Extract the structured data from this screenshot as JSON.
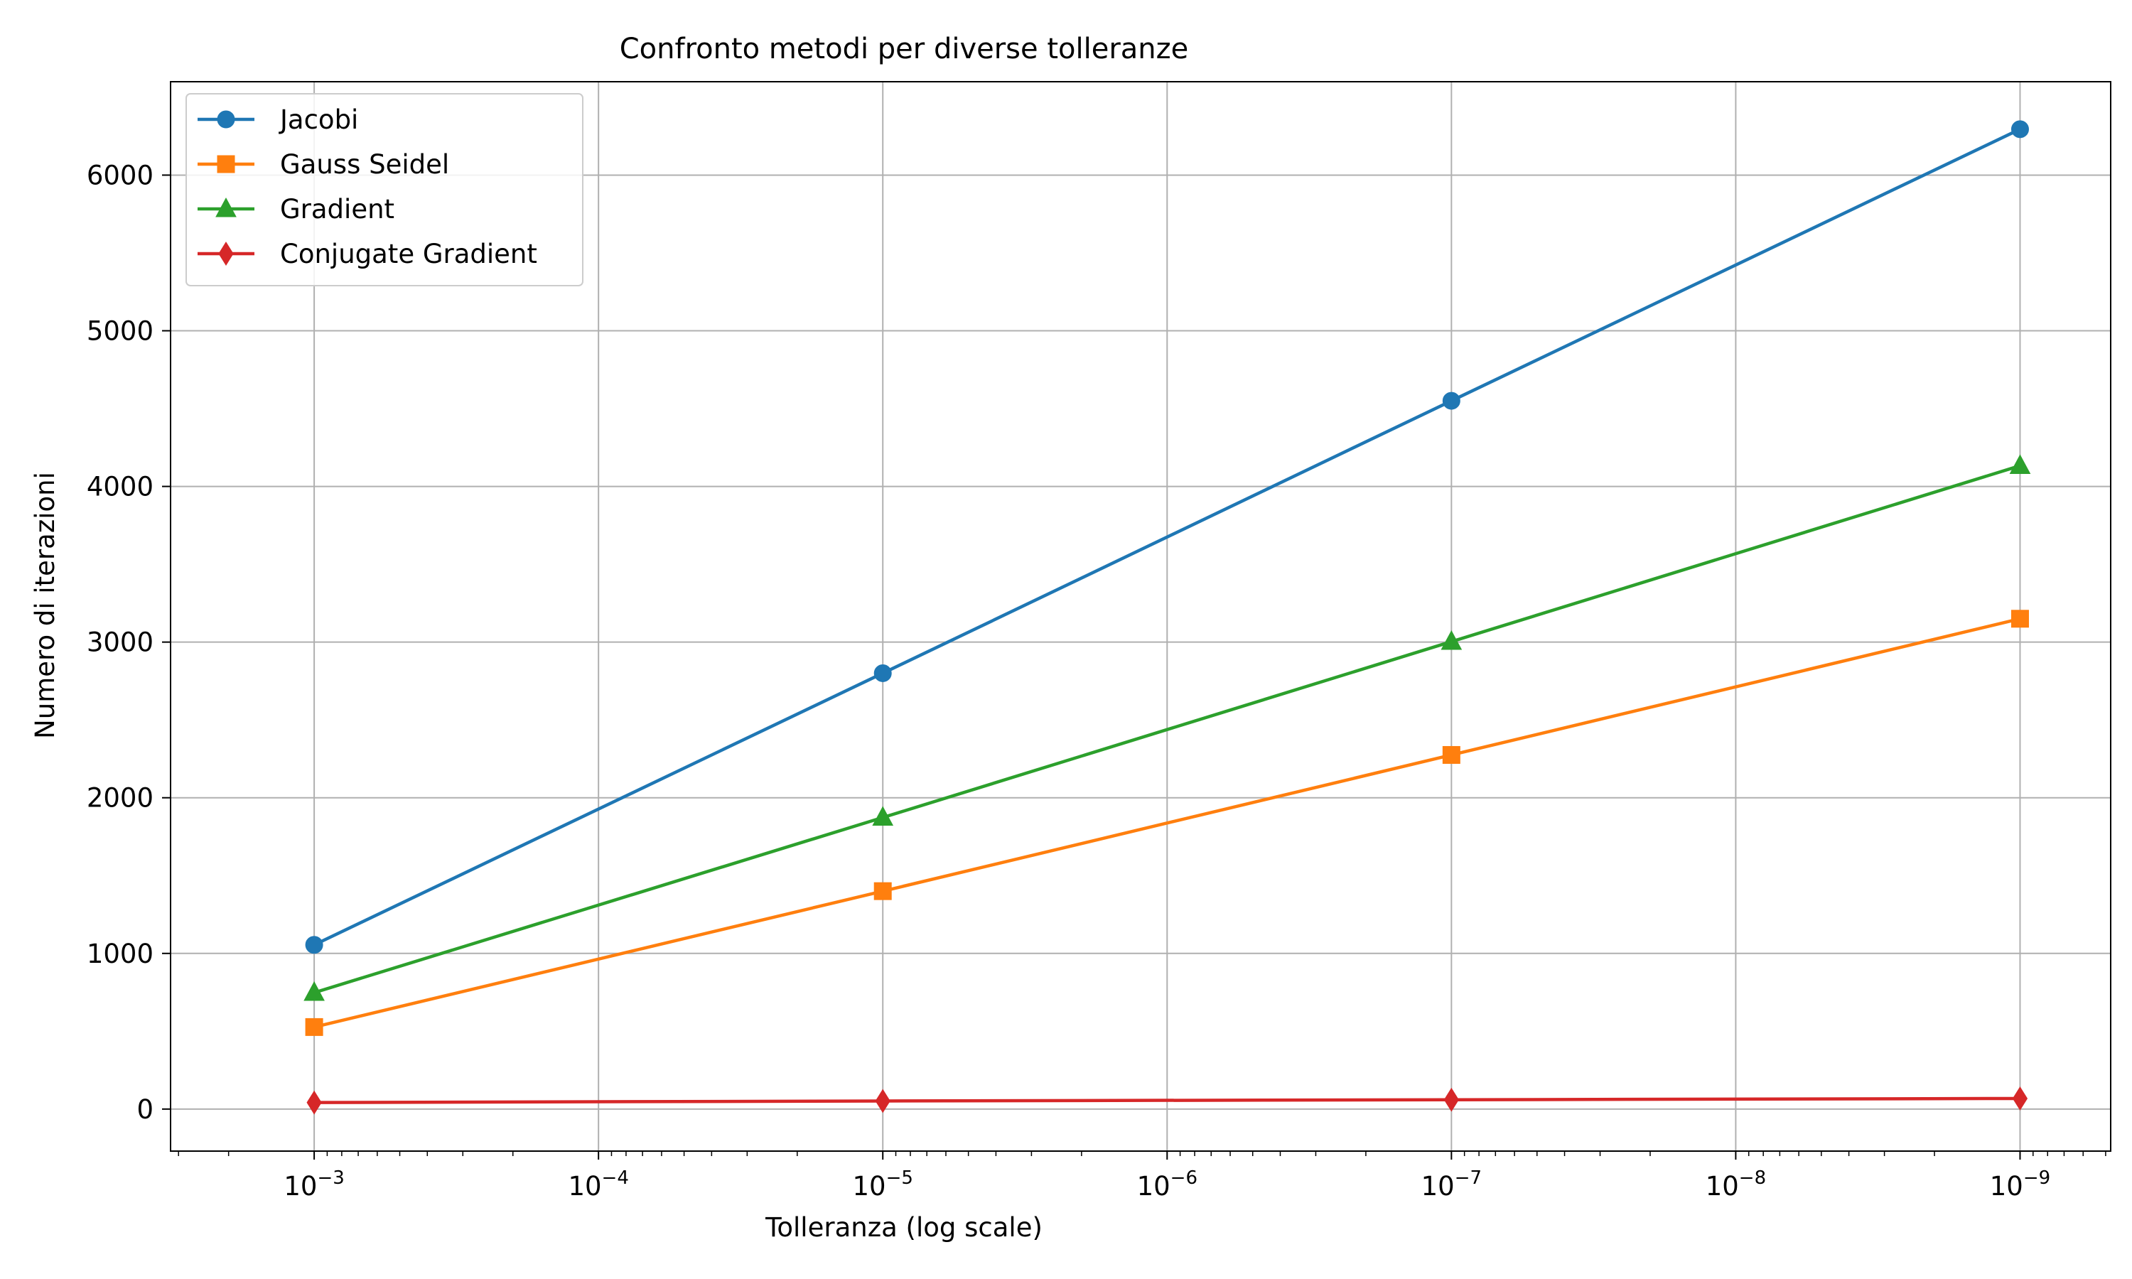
{
  "chart_data": {
    "type": "line",
    "title": "Confronto metodi per diverse tolleranze",
    "xlabel": "Tolleranza (log scale)",
    "ylabel": "Numero di iterazioni",
    "x_scale": "log",
    "x_axis_inverted": true,
    "x": [
      0.001,
      1e-05,
      1e-07,
      1e-09
    ],
    "x_ticks": [
      {
        "value": 0.001,
        "base": "10",
        "exp": "−3"
      },
      {
        "value": 0.0001,
        "base": "10",
        "exp": "−4"
      },
      {
        "value": 1e-05,
        "base": "10",
        "exp": "−5"
      },
      {
        "value": 1e-06,
        "base": "10",
        "exp": "−6"
      },
      {
        "value": 1e-07,
        "base": "10",
        "exp": "−7"
      },
      {
        "value": 1e-08,
        "base": "10",
        "exp": "−8"
      },
      {
        "value": 1e-09,
        "base": "10",
        "exp": "−9"
      }
    ],
    "xlim": [
      0.0032,
      4.8e-10
    ],
    "ylim": [
      -270,
      6600
    ],
    "y_ticks": [
      0,
      1000,
      2000,
      3000,
      4000,
      5000,
      6000
    ],
    "grid": true,
    "legend_position": "top-left",
    "series": [
      {
        "name": "Jacobi",
        "color": "#1f77b4",
        "marker": "circle",
        "values": [
          1055,
          2800,
          4550,
          6295
        ]
      },
      {
        "name": "Gauss Seidel",
        "color": "#ff7f0e",
        "marker": "square",
        "values": [
          527,
          1400,
          2275,
          3150
        ]
      },
      {
        "name": "Gradient",
        "color": "#2ca02c",
        "marker": "triangle",
        "values": [
          748,
          1873,
          3003,
          4133
        ]
      },
      {
        "name": "Conjugate Gradient",
        "color": "#d62728",
        "marker": "diamond",
        "values": [
          42,
          52,
          60,
          68
        ]
      }
    ]
  }
}
